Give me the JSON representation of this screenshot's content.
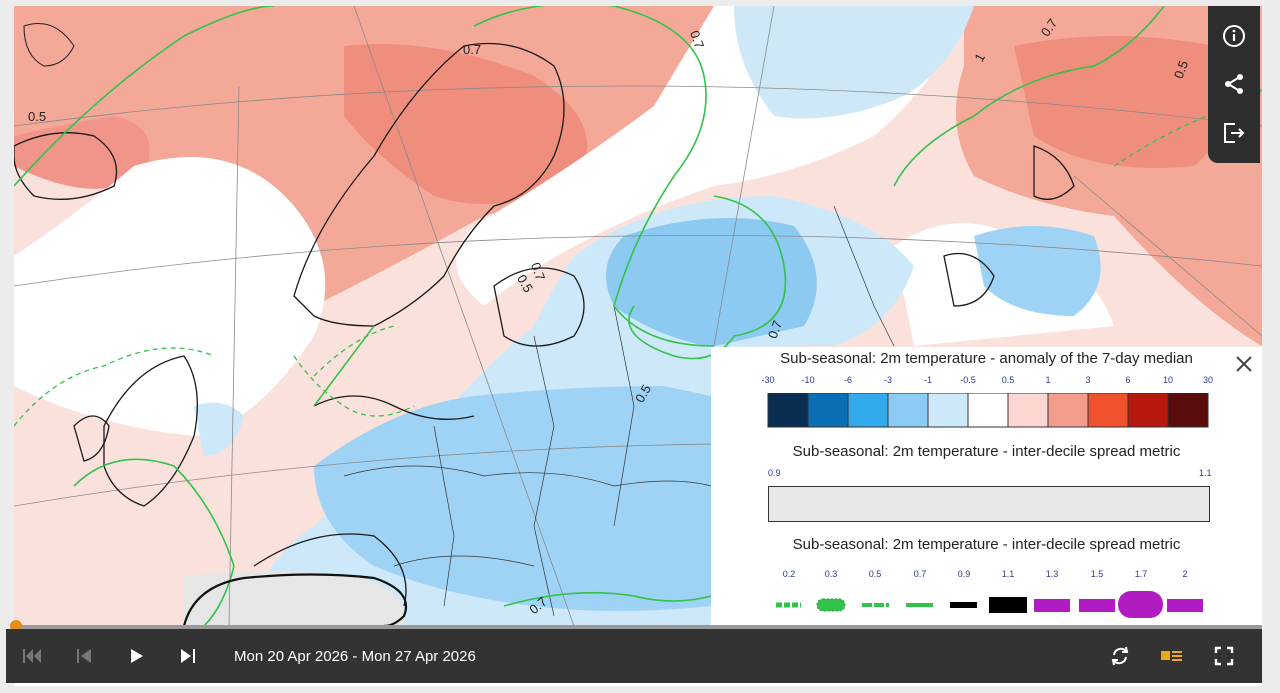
{
  "map": {
    "contour_labels": [
      "0.5",
      "0.7",
      "0.7",
      "0.7",
      "0.5",
      "0.7",
      "1",
      "0.7",
      "0.5",
      "0.7",
      "0.5"
    ]
  },
  "sidebar": {
    "info_icon": "info-icon",
    "share_icon": "share-icon",
    "export_icon": "export-icon"
  },
  "legend": {
    "anomaly": {
      "title": "Sub-seasonal: 2m temperature - anomaly of the 7-day median",
      "ticks": [
        "-30",
        "-10",
        "-6",
        "-3",
        "-1",
        "-0.5",
        "0.5",
        "1",
        "3",
        "6",
        "10",
        "30"
      ],
      "colors": [
        "#0a2d52",
        "#0a6fb4",
        "#31a9ec",
        "#8cccf4",
        "#cce8f9",
        "#ffffff",
        "#fcd6d0",
        "#f39c8c",
        "#f0522e",
        "#b8190e",
        "#5a0b0b"
      ]
    },
    "spread_bar": {
      "title": "Sub-seasonal: 2m temperature - inter-decile spread metric",
      "ticks": [
        "0.9",
        "1.1"
      ],
      "color": "#e8e8e8"
    },
    "spread_lines": {
      "title": "Sub-seasonal: 2m temperature - inter-decile spread metric",
      "ticks": [
        "0.2",
        "0.3",
        "0.5",
        "0.7",
        "0.9",
        "1.1",
        "1.3",
        "1.5",
        "1.7",
        "2"
      ]
    }
  },
  "timeline": {
    "date_range": "Mon 20 Apr 2026 - Mon 27 Apr 2026",
    "progress": 0.0
  },
  "controls": {
    "first_icon": "skip-to-start-icon",
    "prev_icon": "step-back-icon",
    "play_icon": "play-icon",
    "next_icon": "step-forward-icon",
    "loop_icon": "loop-icon",
    "legend_icon": "legend-toggle-icon",
    "fullscreen_icon": "fullscreen-icon"
  }
}
